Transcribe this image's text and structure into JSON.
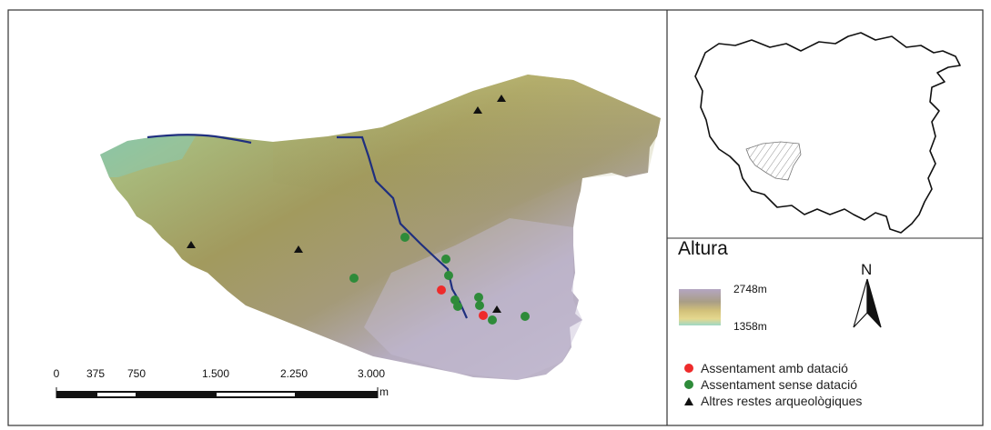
{
  "scale_bar": {
    "labels": [
      "0",
      "375",
      "750",
      "1.500",
      "2.250",
      "3.000"
    ],
    "unit": "m"
  },
  "legend": {
    "elevation_title": "Altura",
    "elevation_max": "2748m",
    "elevation_min": "1358m",
    "elevation_colors": [
      "#b4a6c2",
      "#a99e86",
      "#d3c27a",
      "#e4d88f",
      "#9fd8c6"
    ],
    "north": "N",
    "items": [
      {
        "label": "Assentament amb datació",
        "symbol": "red-dot",
        "color": "#ee2b2b"
      },
      {
        "label": "Assentament sense datació",
        "symbol": "green-dot",
        "color": "#2e8b3a"
      },
      {
        "label": "Altres restes arqueològiques",
        "symbol": "black-triangle",
        "color": "#111111"
      }
    ]
  },
  "colors": {
    "river": "#1f2f7f",
    "relief_low": "#6fc6b4",
    "relief_mid": "#9a9a5a",
    "relief_high": "#b9aec8"
  }
}
